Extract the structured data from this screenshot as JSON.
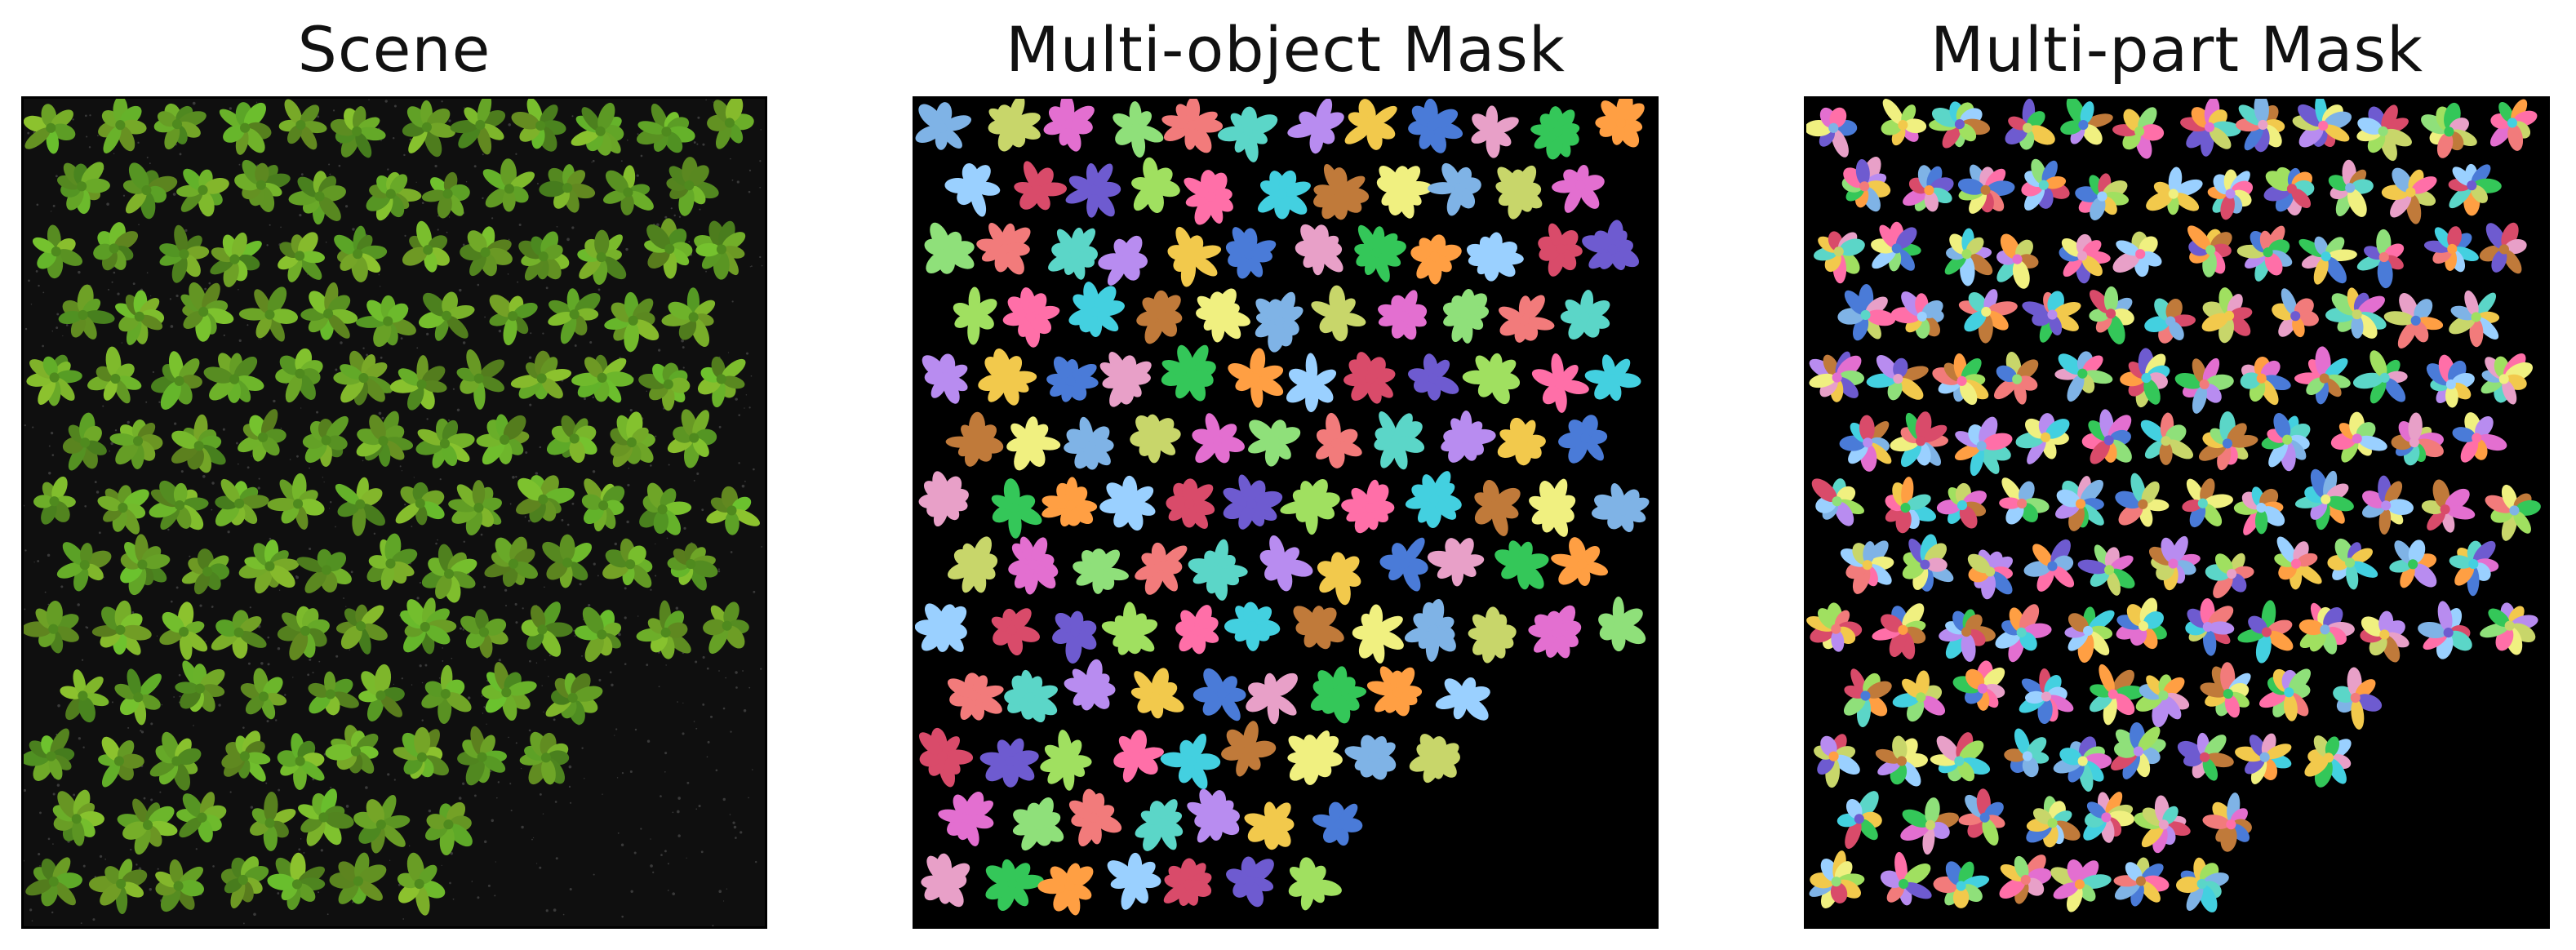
{
  "panels": [
    {
      "title": "Scene",
      "kind": "scene",
      "background": "#0f0f0f",
      "plant_color": "#6aa52a"
    },
    {
      "title": "Multi-object Mask",
      "kind": "object-mask",
      "background": "#000000"
    },
    {
      "title": "Multi-part Mask",
      "kind": "part-mask",
      "background": "#000000"
    }
  ],
  "palette": [
    "#7fb3e6",
    "#c8d66a",
    "#e36fd0",
    "#8fe07a",
    "#f27b7b",
    "#5bd6c8",
    "#b88cf0",
    "#f2c94c",
    "#4a7bd8",
    "#e8a0c8",
    "#34c759",
    "#ff9f43",
    "#9ad0ff",
    "#d94b6a",
    "#6e5bd0",
    "#a0e060",
    "#ff6fa8",
    "#43d0e0",
    "#c07a3a",
    "#f0f080"
  ]
}
